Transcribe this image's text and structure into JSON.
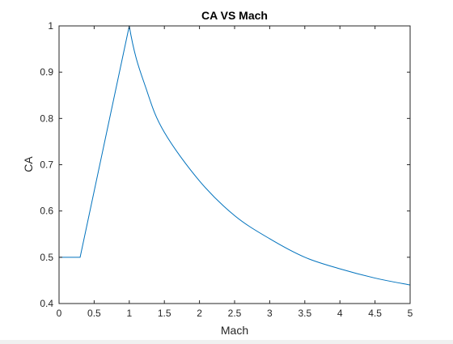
{
  "chart_data": {
    "type": "line",
    "title": "CA VS Mach",
    "xlabel": "Mach",
    "ylabel": "CA",
    "xlim": [
      0,
      5
    ],
    "ylim": [
      0.4,
      1
    ],
    "grid": false,
    "box": true,
    "xticks": [
      "0",
      "0.5",
      "1",
      "1.5",
      "2",
      "2.5",
      "3",
      "3.5",
      "4",
      "4.5",
      "5"
    ],
    "yticks": [
      "0.4",
      "0.5",
      "0.6",
      "0.7",
      "0.8",
      "0.9",
      "1"
    ],
    "series": [
      {
        "color": "#0072BD",
        "x": [
          0,
          0.3,
          1,
          1.25,
          1.5,
          2,
          2.5,
          3,
          3.5,
          4,
          4.5,
          5
        ],
        "y": [
          0.5,
          0.5,
          1,
          0.86,
          0.77,
          0.665,
          0.59,
          0.54,
          0.5,
          0.475,
          0.455,
          0.44
        ]
      }
    ]
  }
}
